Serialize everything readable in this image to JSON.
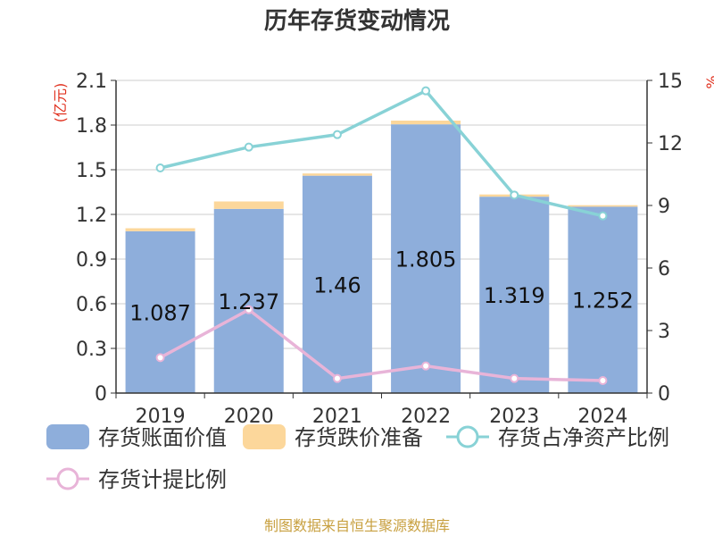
{
  "title": "历年存货变动情况",
  "source": "制图数据来自恒生聚源数据库",
  "chart_data": {
    "type": "bar",
    "categories": [
      "2019",
      "2020",
      "2021",
      "2022",
      "2023",
      "2024"
    ],
    "y_left": {
      "unit": "(亿元)",
      "range": [
        0,
        2.1
      ],
      "ticks": [
        "0",
        "0.3",
        "0.6",
        "0.9",
        "1.2",
        "1.5",
        "1.8",
        "2.1"
      ]
    },
    "y_right": {
      "unit": "%",
      "range": [
        0,
        15
      ],
      "ticks": [
        "0",
        "3",
        "6",
        "9",
        "12",
        "15"
      ]
    },
    "grid": true,
    "legend_position": "bottom",
    "series": [
      {
        "name": "存货账面价值",
        "type": "bar",
        "stack": "inventory",
        "axis": "left",
        "color": "#8eaedb",
        "values": [
          1.087,
          1.237,
          1.46,
          1.805,
          1.319,
          1.252
        ],
        "labels": [
          "1.087",
          "1.237",
          "1.46",
          "1.805",
          "1.319",
          "1.252"
        ]
      },
      {
        "name": "存货跌价准备",
        "type": "bar",
        "stack": "inventory",
        "axis": "left",
        "color": "#fcd79b",
        "values": [
          0.02,
          0.05,
          0.015,
          0.025,
          0.015,
          0.01
        ]
      },
      {
        "name": "存货占净资产比例",
        "type": "line",
        "axis": "right",
        "color": "#88d2d6",
        "values": [
          10.8,
          11.8,
          12.4,
          14.5,
          9.5,
          8.5
        ]
      },
      {
        "name": "存货计提比例",
        "type": "line",
        "axis": "right",
        "color": "#e8b4d8",
        "values": [
          1.7,
          4.0,
          0.7,
          1.3,
          0.7,
          0.6
        ]
      }
    ]
  }
}
